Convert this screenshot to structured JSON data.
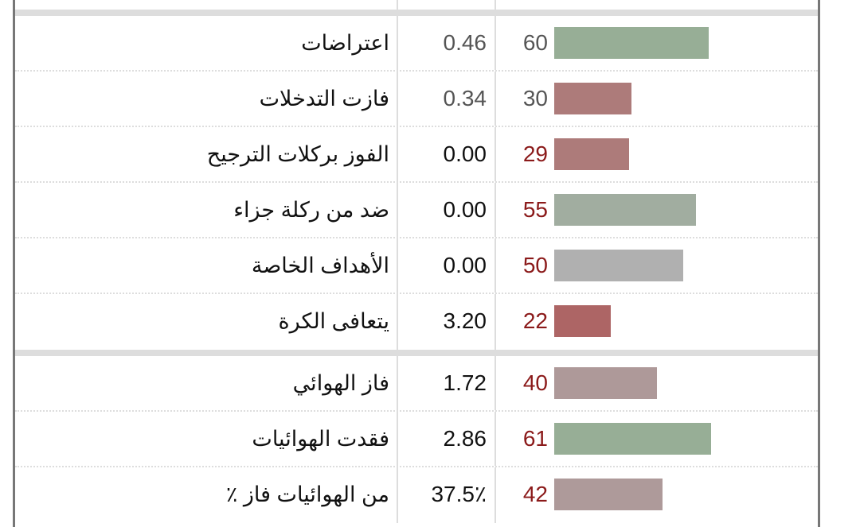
{
  "rows_group1": [
    {
      "label": "اعتراضات",
      "value": "0.46",
      "rank": "60",
      "bar_color": "#97ae96",
      "rank_color": "#555555",
      "value_color": "#555555"
    },
    {
      "label": "فازت التدخلات",
      "value": "0.34",
      "rank": "30",
      "bar_color": "#ad7b7a",
      "rank_color": "#555555",
      "value_color": "#555555"
    },
    {
      "label": "الفوز بركلات الترجيح",
      "value": "0.00",
      "rank": "29",
      "bar_color": "#ad7b7a",
      "rank_color": "#8b1a1a",
      "value_color": "#111111"
    },
    {
      "label": "ضد من ركلة جزاء",
      "value": "0.00",
      "rank": "55",
      "bar_color": "#a1ada0",
      "rank_color": "#8b1a1a",
      "value_color": "#111111"
    },
    {
      "label": "الأهداف الخاصة",
      "value": "0.00",
      "rank": "50",
      "bar_color": "#b0b0b0",
      "rank_color": "#8b1a1a",
      "value_color": "#111111"
    },
    {
      "label": "يتعافى الكرة",
      "value": "3.20",
      "rank": "22",
      "bar_color": "#ad6565",
      "rank_color": "#8b1a1a",
      "value_color": "#111111"
    }
  ],
  "rows_group2": [
    {
      "label": "فاز الهوائي",
      "value": "1.72",
      "rank": "40",
      "bar_color": "#ae9999",
      "rank_color": "#8b1a1a",
      "value_color": "#111111"
    },
    {
      "label": "فقدت الهوائيات",
      "value": "2.86",
      "rank": "61",
      "bar_color": "#97ae96",
      "rank_color": "#8b1a1a",
      "value_color": "#111111"
    },
    {
      "label": "من الهوائيات فاز ٪",
      "value": "37.5٪",
      "rank": "42",
      "bar_color": "#ae9a9a",
      "rank_color": "#8b1a1a",
      "value_color": "#111111"
    }
  ]
}
